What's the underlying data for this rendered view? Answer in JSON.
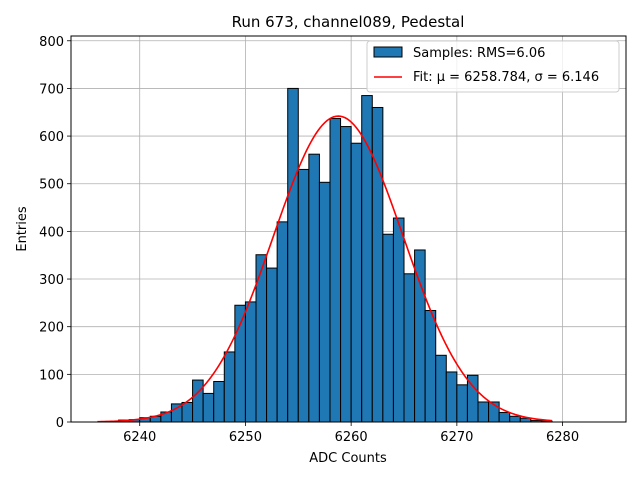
{
  "chart_data": {
    "type": "bar",
    "title": "Run 673, channel089, Pedestal",
    "xlabel": "ADC Counts",
    "ylabel": "Entries",
    "xlim": [
      6233.5,
      6286
    ],
    "ylim": [
      0,
      810
    ],
    "xticks": [
      6240,
      6250,
      6260,
      6270,
      6280
    ],
    "yticks": [
      0,
      100,
      200,
      300,
      400,
      500,
      600,
      700,
      800
    ],
    "grid": true,
    "legend_position": "top-right",
    "bin_width": 1,
    "bins": {
      "x_left": [
        6238,
        6239,
        6240,
        6241,
        6242,
        6243,
        6244,
        6245,
        6246,
        6247,
        6248,
        6249,
        6250,
        6251,
        6252,
        6253,
        6254,
        6255,
        6256,
        6257,
        6258,
        6259,
        6260,
        6261,
        6262,
        6263,
        6264,
        6265,
        6266,
        6267,
        6268,
        6269,
        6270,
        6271,
        6272,
        6273,
        6274,
        6275,
        6276,
        6277,
        6278
      ],
      "counts": [
        4,
        5,
        9,
        12,
        21,
        38,
        41,
        88,
        60,
        85,
        147,
        245,
        252,
        351,
        323,
        420,
        700,
        530,
        562,
        503,
        637,
        620,
        585,
        685,
        660,
        394,
        428,
        311,
        361,
        234,
        140,
        105,
        78,
        98,
        42,
        42,
        20,
        12,
        8,
        3,
        2
      ]
    },
    "fit": {
      "mu": 6258.784,
      "sigma": 6.146,
      "amplitude": 642,
      "x_range": [
        6236,
        6279
      ]
    },
    "series": [
      {
        "name": "Samples: RMS=6.06",
        "kind": "histogram",
        "color": "#1f77b4"
      },
      {
        "name": "Fit: μ = 6258.784, σ = 6.146",
        "kind": "line",
        "color": "#ff0000"
      }
    ]
  }
}
